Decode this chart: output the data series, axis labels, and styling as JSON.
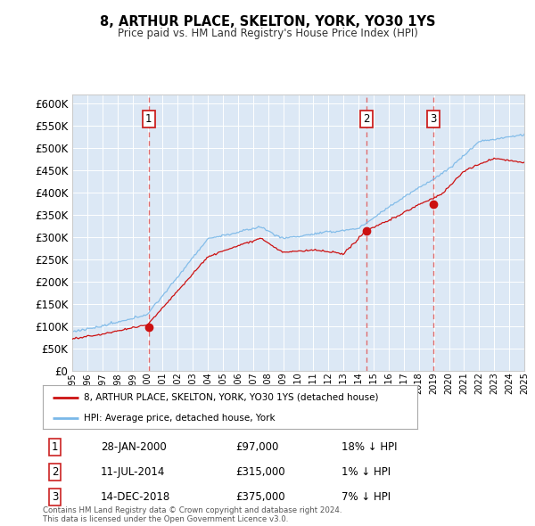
{
  "title": "8, ARTHUR PLACE, SKELTON, YORK, YO30 1YS",
  "subtitle": "Price paid vs. HM Land Registry's House Price Index (HPI)",
  "ylim": [
    0,
    620000
  ],
  "ytick_values": [
    0,
    50000,
    100000,
    150000,
    200000,
    250000,
    300000,
    350000,
    400000,
    450000,
    500000,
    550000,
    600000
  ],
  "plot_bg_color": "#dce8f5",
  "grid_color": "#ffffff",
  "hpi_color": "#7ab8e8",
  "price_color": "#cc1111",
  "dashed_color": "#e06060",
  "sale_years": [
    2000.07,
    2014.53,
    2018.96
  ],
  "sale_prices": [
    97000,
    315000,
    375000
  ],
  "sale_labels": [
    "1",
    "2",
    "3"
  ],
  "legend_entry1": "8, ARTHUR PLACE, SKELTON, YORK, YO30 1YS (detached house)",
  "legend_entry2": "HPI: Average price, detached house, York",
  "footnote": "Contains HM Land Registry data © Crown copyright and database right 2024.\nThis data is licensed under the Open Government Licence v3.0.",
  "x_start_year": 1995,
  "x_end_year": 2025,
  "row_data": [
    [
      "1",
      "28-JAN-2000",
      "£97,000",
      "18% ↓ HPI"
    ],
    [
      "2",
      "11-JUL-2014",
      "£315,000",
      "1% ↓ HPI"
    ],
    [
      "3",
      "14-DEC-2018",
      "£375,000",
      "7% ↓ HPI"
    ]
  ]
}
